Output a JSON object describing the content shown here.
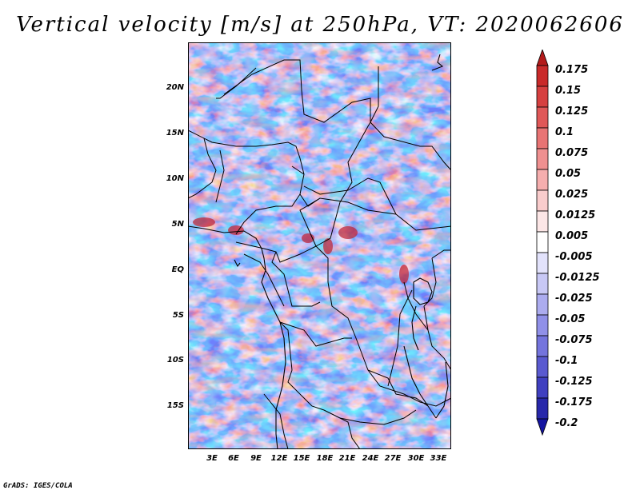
{
  "title": "Vertical velocity [m/s] at 250hPa, VT: 2020062606",
  "map": {
    "latitude_labels": [
      "20N",
      "15N",
      "10N",
      "5N",
      "EQ",
      "5S",
      "10S",
      "15S"
    ],
    "longitude_labels": [
      "3E",
      "6E",
      "9E",
      "12E",
      "15E",
      "18E",
      "21E",
      "24E",
      "27E",
      "30E",
      "33E"
    ]
  },
  "colorbar": {
    "labels": [
      "0.175",
      "0.15",
      "0.125",
      "0.1",
      "0.075",
      "0.05",
      "0.025",
      "0.0125",
      "0.005",
      "-0.005",
      "-0.0125",
      "-0.025",
      "-0.05",
      "-0.075",
      "-0.1",
      "-0.125",
      "-0.175",
      "-0.2"
    ],
    "colors": [
      "#b31a1a",
      "#c92a2a",
      "#d64040",
      "#e05858",
      "#e87474",
      "#ef9090",
      "#f5aeae",
      "#f9cccc",
      "#fce6e6",
      "#ffffff",
      "#e2e2fb",
      "#c8c8f5",
      "#acacef",
      "#9090e8",
      "#7474dd",
      "#5a5ad0",
      "#4040c0",
      "#2828aa",
      "#1414a0"
    ]
  },
  "credit": "GrADS: IGES/COLA"
}
